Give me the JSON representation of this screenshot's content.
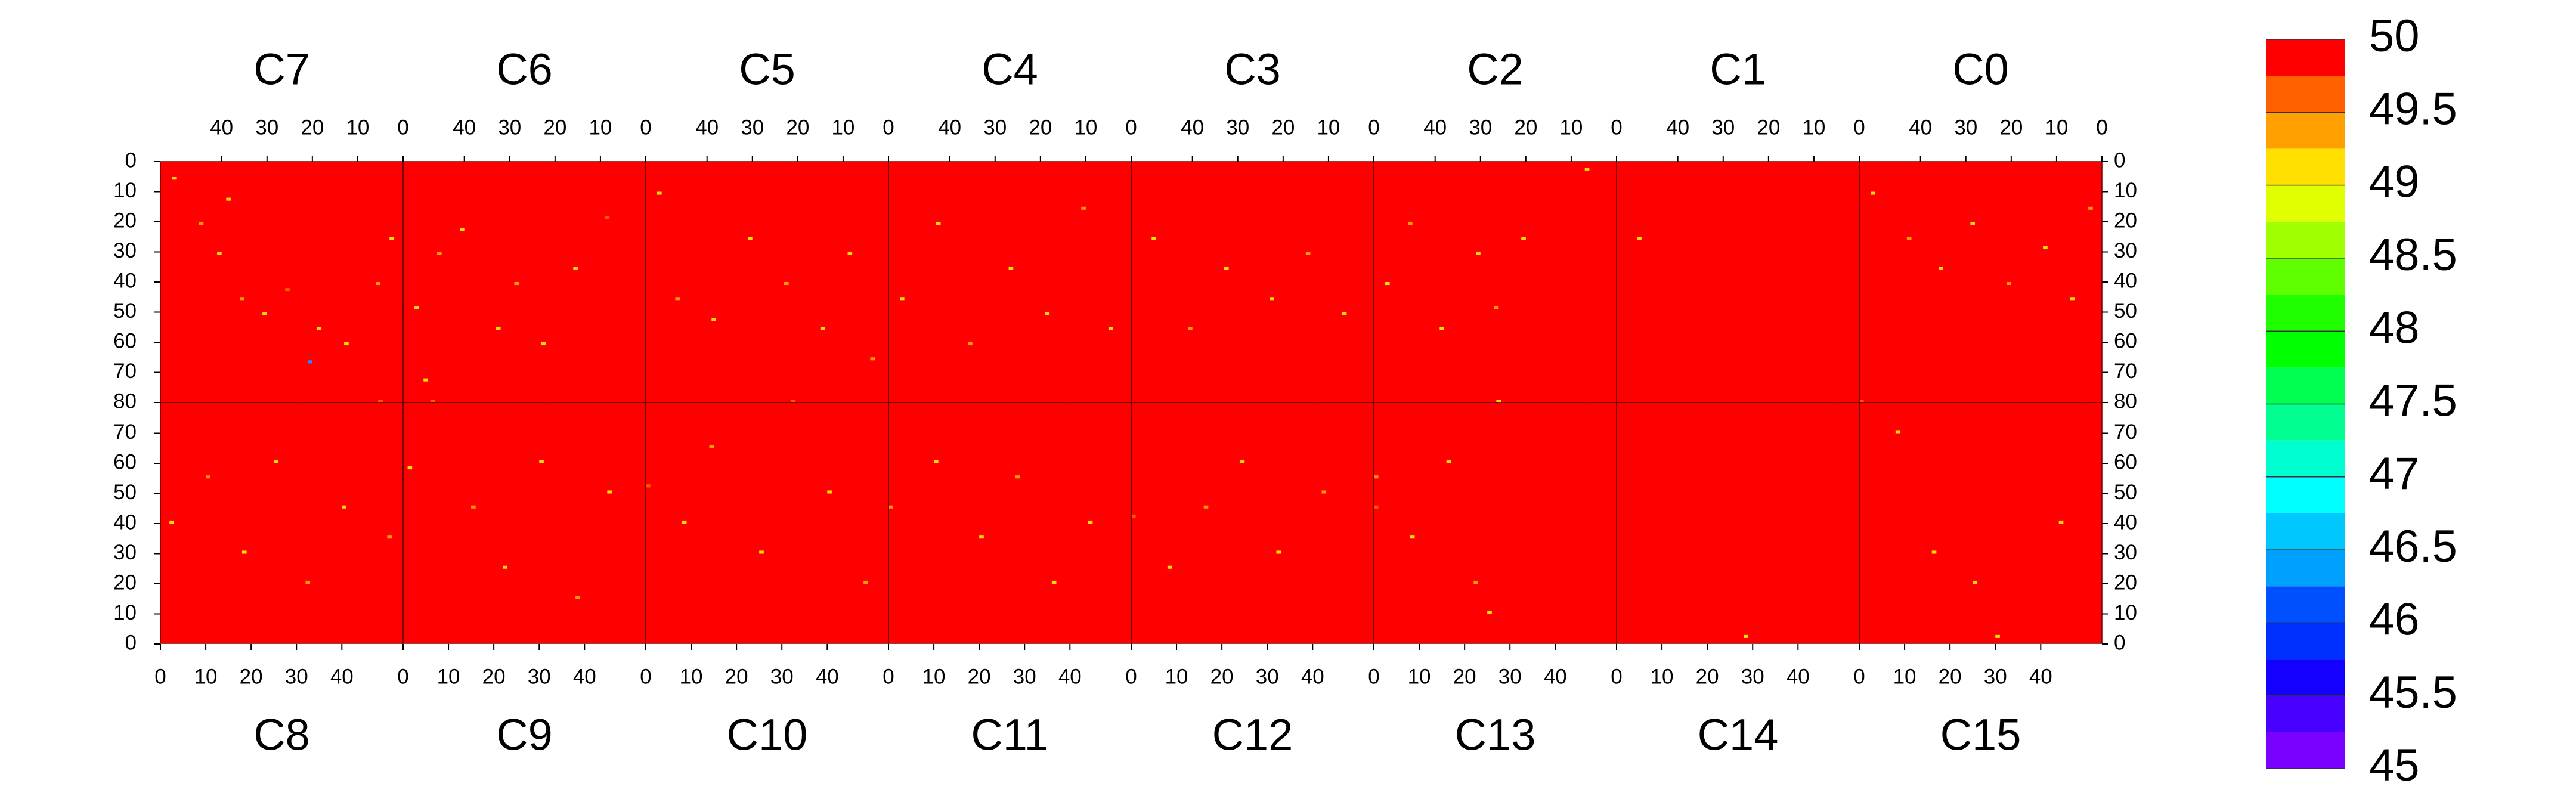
{
  "chart_data": {
    "type": "heatmap",
    "chips": [
      "C0",
      "C1",
      "C2",
      "C3",
      "C4",
      "C5",
      "C6",
      "C7",
      "C8",
      "C9",
      "C10",
      "C11",
      "C12",
      "C13",
      "C14",
      "C15"
    ],
    "xlim": [
      0,
      53.5
    ],
    "xticks": [
      0,
      10,
      20,
      30,
      40
    ],
    "ylim": [
      0,
      80
    ],
    "yticks": [
      0,
      10,
      20,
      30,
      40,
      50,
      60,
      70,
      80
    ],
    "background_value": 50,
    "cells": [
      [
        7,
        50,
        5,
        49
      ],
      [
        7,
        44,
        20,
        49.25
      ],
      [
        7,
        40,
        30,
        49
      ],
      [
        7,
        35,
        45,
        49.25
      ],
      [
        7,
        30,
        50,
        49
      ],
      [
        7,
        25,
        42,
        49.5
      ],
      [
        7,
        18,
        55,
        49
      ],
      [
        7,
        12,
        60,
        49
      ],
      [
        7,
        5,
        40,
        49.25
      ],
      [
        7,
        2,
        25,
        49
      ],
      [
        7,
        20,
        66,
        46.25
      ],
      [
        7,
        38,
        12,
        49
      ],
      [
        6,
        50,
        48,
        49
      ],
      [
        6,
        45,
        30,
        49.25
      ],
      [
        6,
        40,
        22,
        49
      ],
      [
        6,
        32,
        55,
        49
      ],
      [
        6,
        28,
        40,
        49.25
      ],
      [
        6,
        22,
        60,
        49
      ],
      [
        6,
        15,
        35,
        49
      ],
      [
        6,
        8,
        18,
        49.5
      ],
      [
        6,
        48,
        72,
        49
      ],
      [
        5,
        50,
        10,
        49
      ],
      [
        5,
        46,
        45,
        49.25
      ],
      [
        5,
        38,
        52,
        49
      ],
      [
        5,
        30,
        25,
        49
      ],
      [
        5,
        22,
        40,
        49.25
      ],
      [
        5,
        14,
        55,
        49
      ],
      [
        5,
        8,
        30,
        49
      ],
      [
        5,
        3,
        65,
        49.25
      ],
      [
        4,
        50,
        45,
        49
      ],
      [
        4,
        42,
        20,
        49
      ],
      [
        4,
        35,
        60,
        49.25
      ],
      [
        4,
        26,
        35,
        49
      ],
      [
        4,
        18,
        50,
        49
      ],
      [
        4,
        10,
        15,
        49.25
      ],
      [
        4,
        4,
        55,
        49
      ],
      [
        3,
        48,
        25,
        49
      ],
      [
        3,
        40,
        55,
        49.25
      ],
      [
        3,
        32,
        35,
        49
      ],
      [
        3,
        22,
        45,
        49
      ],
      [
        3,
        14,
        30,
        49.25
      ],
      [
        3,
        6,
        50,
        49
      ],
      [
        2,
        50,
        40,
        49
      ],
      [
        2,
        45,
        20,
        49.25
      ],
      [
        2,
        38,
        55,
        49
      ],
      [
        2,
        30,
        30,
        49
      ],
      [
        2,
        26,
        48,
        49.25
      ],
      [
        2,
        20,
        25,
        49
      ],
      [
        2,
        6,
        2,
        49
      ],
      [
        1,
        48,
        25,
        49
      ],
      [
        0,
        50,
        10,
        49
      ],
      [
        0,
        42,
        25,
        49.25
      ],
      [
        0,
        35,
        35,
        49
      ],
      [
        0,
        28,
        20,
        49
      ],
      [
        0,
        20,
        40,
        49.25
      ],
      [
        0,
        12,
        28,
        49
      ],
      [
        0,
        6,
        45,
        49
      ],
      [
        0,
        2,
        15,
        49.25
      ],
      [
        8,
        2,
        40,
        49
      ],
      [
        8,
        10,
        55,
        49.25
      ],
      [
        8,
        18,
        30,
        49
      ],
      [
        8,
        25,
        60,
        49
      ],
      [
        8,
        32,
        20,
        49.25
      ],
      [
        8,
        40,
        45,
        49
      ],
      [
        8,
        50,
        35,
        49.25
      ],
      [
        8,
        48,
        80,
        49.5
      ],
      [
        9,
        1,
        58,
        49
      ],
      [
        9,
        6,
        80,
        49.5
      ],
      [
        9,
        15,
        45,
        49.25
      ],
      [
        9,
        22,
        25,
        49
      ],
      [
        9,
        30,
        60,
        49
      ],
      [
        9,
        38,
        15,
        49.25
      ],
      [
        9,
        45,
        50,
        49
      ],
      [
        10,
        0,
        52,
        49.5
      ],
      [
        10,
        8,
        40,
        49
      ],
      [
        10,
        14,
        65,
        49.25
      ],
      [
        10,
        25,
        30,
        49
      ],
      [
        10,
        32,
        80,
        49.5
      ],
      [
        10,
        40,
        50,
        49
      ],
      [
        10,
        48,
        20,
        49.25
      ],
      [
        11,
        0,
        45,
        49.25
      ],
      [
        11,
        10,
        60,
        49
      ],
      [
        11,
        20,
        35,
        49
      ],
      [
        11,
        28,
        55,
        49.25
      ],
      [
        11,
        36,
        20,
        49
      ],
      [
        11,
        44,
        40,
        49
      ],
      [
        12,
        0,
        42,
        49.5
      ],
      [
        12,
        8,
        25,
        49
      ],
      [
        12,
        16,
        45,
        49.25
      ],
      [
        12,
        24,
        60,
        49
      ],
      [
        12,
        32,
        30,
        49
      ],
      [
        12,
        42,
        50,
        49.25
      ],
      [
        13,
        0,
        45,
        49.5
      ],
      [
        13,
        0,
        55,
        49.25
      ],
      [
        13,
        8,
        35,
        49
      ],
      [
        13,
        16,
        60,
        49
      ],
      [
        13,
        22,
        20,
        49.25
      ],
      [
        13,
        25,
        10,
        49
      ],
      [
        13,
        27,
        80,
        49
      ],
      [
        14,
        28,
        2,
        49
      ],
      [
        15,
        0,
        80,
        49.5
      ],
      [
        15,
        8,
        70,
        49
      ],
      [
        15,
        16,
        30,
        49
      ],
      [
        15,
        25,
        20,
        49
      ],
      [
        15,
        30,
        2,
        49
      ],
      [
        15,
        44,
        40,
        49
      ]
    ],
    "colorbar": {
      "levels": [
        45,
        45.25,
        45.5,
        45.75,
        46,
        46.25,
        46.5,
        46.75,
        47,
        47.25,
        47.5,
        47.75,
        48,
        48.25,
        48.5,
        48.75,
        49,
        49.25,
        49.5,
        49.75,
        50
      ],
      "colors": [
        "#7a00ff",
        "#4800ff",
        "#1400ff",
        "#0030ff",
        "#0050ff",
        "#00a0ff",
        "#00c8ff",
        "#00ffff",
        "#00ffd0",
        "#00ff90",
        "#00ff50",
        "#00ff00",
        "#20ff00",
        "#60ff00",
        "#a0ff00",
        "#e0ff00",
        "#ffe000",
        "#ffa000",
        "#ff6000",
        "#ff0000"
      ],
      "ticks": [
        45,
        45.5,
        46,
        46.5,
        47,
        47.5,
        48,
        48.5,
        49,
        49.5,
        50
      ]
    }
  }
}
